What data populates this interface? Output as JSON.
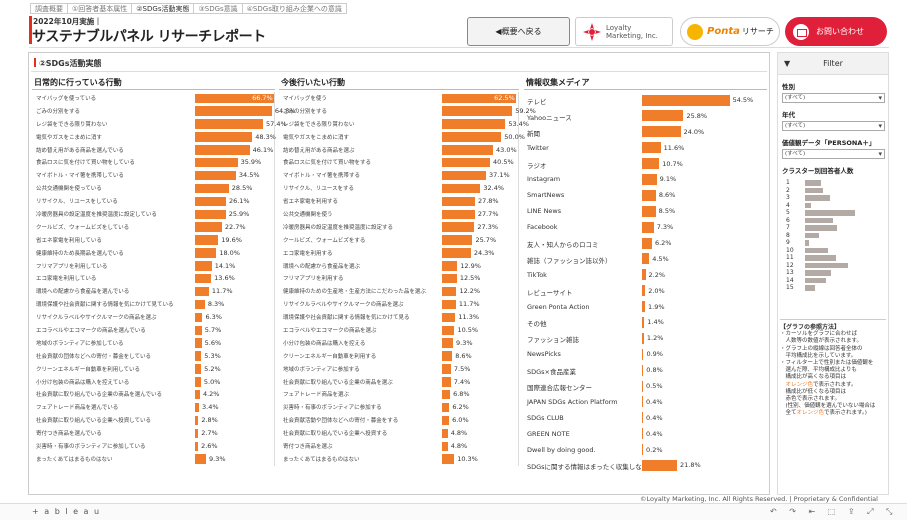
{
  "tabs": [
    "調査概要",
    "①回答者基本属性",
    "②SDGs活動実態",
    "③SDGs意識",
    "④SDGs取り組み企業への意識"
  ],
  "header": {
    "date": "2022年10月実施｜",
    "title": "サステナブルパネル リサーチレポート",
    "back_label": "◀概要へ戻る",
    "logo_lm": "Loyalty\nMarketing, Inc.",
    "logo_lm_line1": "Loyalty",
    "logo_lm_line2": "Marketing, Inc.",
    "ponta_p": "Ponta",
    "ponta_r": "リサーチ",
    "contact_label": "お問い合わせ"
  },
  "section_title": "②SDGs活動実態",
  "colors": {
    "bar": "#f07d2a",
    "accent": "#e0301e",
    "contact": "#e0203a",
    "cluster": "#b3aaa6"
  },
  "panels": [
    {
      "title": "日常的に行っている行動",
      "rows": [
        {
          "label": "マイバッグを使っている",
          "value": 66.7,
          "text": "66.7%"
        },
        {
          "label": "ごみの分別をする",
          "value": 64.8,
          "text": "64.8%"
        },
        {
          "label": "レジ袋をできる限り貰わない",
          "value": 57.4,
          "text": "57.4%"
        },
        {
          "label": "電気やガスをこまめに消す",
          "value": 48.3,
          "text": "48.3%"
        },
        {
          "label": "詰め替え用がある商品を選んでいる",
          "value": 46.1,
          "text": "46.1%"
        },
        {
          "label": "食品ロスに気を付けて買い物をしている",
          "value": 35.9,
          "text": "35.9%"
        },
        {
          "label": "マイボトル・マイ箸を携帯している",
          "value": 34.5,
          "text": "34.5%"
        },
        {
          "label": "公共交通機関を使っている",
          "value": 28.5,
          "text": "28.5%"
        },
        {
          "label": "リサイクル、リユースをしている",
          "value": 26.1,
          "text": "26.1%"
        },
        {
          "label": "冷暖房器具の設定温度を推奨温度に設定している",
          "value": 25.9,
          "text": "25.9%"
        },
        {
          "label": "クールビズ、ウォームビズをしている",
          "value": 22.7,
          "text": "22.7%"
        },
        {
          "label": "省エネ家電を利用している",
          "value": 19.6,
          "text": "19.6%"
        },
        {
          "label": "健康維持のため長期品を選んでいる",
          "value": 18.0,
          "text": "18.0%"
        },
        {
          "label": "フリマアプリを利用している",
          "value": 14.1,
          "text": "14.1%"
        },
        {
          "label": "エコ家電を利用している",
          "value": 13.6,
          "text": "13.6%"
        },
        {
          "label": "環境への配慮から食産品を選んでいる",
          "value": 11.7,
          "text": "11.7%"
        },
        {
          "label": "環境保護や社会貢献に関する情報を気にかけて見ている",
          "value": 8.3,
          "text": "8.3%"
        },
        {
          "label": "リサイクルラベルやサイクルマークの商品を選ぶ",
          "value": 6.3,
          "text": "6.3%"
        },
        {
          "label": "エコラベルやエコマークの商品を選んでいる",
          "value": 5.7,
          "text": "5.7%"
        },
        {
          "label": "地域のボランティアに参加している",
          "value": 5.6,
          "text": "5.6%"
        },
        {
          "label": "社会貢献の団体などへの寄付・募金をしている",
          "value": 5.3,
          "text": "5.3%"
        },
        {
          "label": "クリーンエネルギー自動車を利用している",
          "value": 5.2,
          "text": "5.2%"
        },
        {
          "label": "小分け包装の商品は購入を控えている",
          "value": 5.0,
          "text": "5.0%"
        },
        {
          "label": "社会貢献に取り組んでいる企業の商品を選んでいる",
          "value": 4.2,
          "text": "4.2%"
        },
        {
          "label": "フェアトレード商品を選んでいる",
          "value": 3.4,
          "text": "3.4%"
        },
        {
          "label": "社会貢献に取り組んでいる企業へ投資している",
          "value": 2.8,
          "text": "2.8%"
        },
        {
          "label": "寄付つき商品を選んでいる",
          "value": 2.7,
          "text": "2.7%"
        },
        {
          "label": "災害時・有事のボランティアに参加している",
          "value": 2.6,
          "text": "2.6%"
        },
        {
          "label": "まったくあてはまるものはない",
          "value": 9.3,
          "text": "9.3%"
        }
      ]
    },
    {
      "title": "今後行いたい行動",
      "rows": [
        {
          "label": "マイバッグを使う",
          "value": 62.5,
          "text": "62.5%"
        },
        {
          "label": "ごみの分別をする",
          "value": 59.2,
          "text": "59.2%"
        },
        {
          "label": "レジ袋をできる限り貰わない",
          "value": 53.4,
          "text": "53.4%"
        },
        {
          "label": "電気やガスをこまめに消す",
          "value": 50.0,
          "text": "50.0%"
        },
        {
          "label": "詰め替え用がある商品を選ぶ",
          "value": 43.0,
          "text": "43.0%"
        },
        {
          "label": "食品ロスに気を付けて買い物をする",
          "value": 40.5,
          "text": "40.5%"
        },
        {
          "label": "マイボトル・マイ箸を携帯する",
          "value": 37.1,
          "text": "37.1%"
        },
        {
          "label": "リサイクル、リユースをする",
          "value": 32.4,
          "text": "32.4%"
        },
        {
          "label": "省エネ家電を利用する",
          "value": 27.8,
          "text": "27.8%"
        },
        {
          "label": "公共交通機関を使う",
          "value": 27.7,
          "text": "27.7%"
        },
        {
          "label": "冷暖房器具の設定温度を推奨温度に設定する",
          "value": 27.3,
          "text": "27.3%"
        },
        {
          "label": "クールビズ、ウォームビズをする",
          "value": 25.7,
          "text": "25.7%"
        },
        {
          "label": "エコ家電を利用する",
          "value": 24.3,
          "text": "24.3%"
        },
        {
          "label": "環境への配慮から食産品を選ぶ",
          "value": 12.9,
          "text": "12.9%"
        },
        {
          "label": "フリマアプリを利用する",
          "value": 12.5,
          "text": "12.5%"
        },
        {
          "label": "健康維持のための生産地・生産方法にこだわった品を選ぶ",
          "value": 12.2,
          "text": "12.2%"
        },
        {
          "label": "リサイクルラベルやサイクルマークの商品を選ぶ",
          "value": 11.7,
          "text": "11.7%"
        },
        {
          "label": "環境保護や社会貢献に関する情報を気にかけて見る",
          "value": 11.3,
          "text": "11.3%"
        },
        {
          "label": "エコラベルやエコマークの商品を選ぶ",
          "value": 10.5,
          "text": "10.5%"
        },
        {
          "label": "小分け包装の商品は購入を控える",
          "value": 9.3,
          "text": "9.3%"
        },
        {
          "label": "クリーンエネルギー自動車を利用する",
          "value": 8.6,
          "text": "8.6%"
        },
        {
          "label": "地域のボランティアに参加する",
          "value": 7.5,
          "text": "7.5%"
        },
        {
          "label": "社会貢献に取り組んでいる企業の商品を選ぶ",
          "value": 7.4,
          "text": "7.4%"
        },
        {
          "label": "フェアトレード商品を選ぶ",
          "value": 6.8,
          "text": "6.8%"
        },
        {
          "label": "災害時・有事のボランティアに参加する",
          "value": 6.2,
          "text": "6.2%"
        },
        {
          "label": "社会貢献活動や団体などへの寄付・募金をする",
          "value": 6.0,
          "text": "6.0%"
        },
        {
          "label": "社会貢献に取り組んでいる企業へ投資する",
          "value": 4.8,
          "text": "4.8%"
        },
        {
          "label": "寄付つき商品を選ぶ",
          "value": 4.8,
          "text": "4.8%"
        },
        {
          "label": "まったくあてはまるものはない",
          "value": 10.3,
          "text": "10.3%"
        }
      ]
    }
  ],
  "media": {
    "title": "情報収集メディア",
    "rows": [
      {
        "label": "テレビ",
        "value": 54.5,
        "text": "54.5%"
      },
      {
        "label": "Yahooニュース",
        "value": 25.8,
        "text": "25.8%"
      },
      {
        "label": "新聞",
        "value": 24.0,
        "text": "24.0%"
      },
      {
        "label": "Twitter",
        "value": 11.6,
        "text": "11.6%"
      },
      {
        "label": "ラジオ",
        "value": 10.7,
        "text": "10.7%"
      },
      {
        "label": "Instagram",
        "value": 9.1,
        "text": "9.1%"
      },
      {
        "label": "SmartNews",
        "value": 8.6,
        "text": "8.6%"
      },
      {
        "label": "LINE News",
        "value": 8.5,
        "text": "8.5%"
      },
      {
        "label": "Facebook",
        "value": 7.3,
        "text": "7.3%"
      },
      {
        "label": "友人・知人からのロコミ",
        "value": 6.2,
        "text": "6.2%"
      },
      {
        "label": "雑誌（ファッション誌以外）",
        "value": 4.5,
        "text": "4.5%"
      },
      {
        "label": "TikTok",
        "value": 2.2,
        "text": "2.2%"
      },
      {
        "label": "レビューサイト",
        "value": 2.0,
        "text": "2.0%"
      },
      {
        "label": "Green Ponta Action",
        "value": 1.9,
        "text": "1.9%"
      },
      {
        "label": "その他",
        "value": 1.4,
        "text": "1.4%"
      },
      {
        "label": "ファッション雑誌",
        "value": 1.2,
        "text": "1.2%"
      },
      {
        "label": "NewsPicks",
        "value": 0.9,
        "text": "0.9%"
      },
      {
        "label": "SDGs×食品産業",
        "value": 0.8,
        "text": "0.8%"
      },
      {
        "label": "国際連合広報センター",
        "value": 0.5,
        "text": "0.5%"
      },
      {
        "label": "JAPAN SDGs Action Platform",
        "value": 0.4,
        "text": "0.4%"
      },
      {
        "label": "SDGs CLUB",
        "value": 0.4,
        "text": "0.4%"
      },
      {
        "label": "GREEN NOTE",
        "value": 0.4,
        "text": "0.4%"
      },
      {
        "label": "Dwell by doing good.",
        "value": 0.2,
        "text": "0.2%"
      },
      {
        "label": "SDGsに関する情報はまったく収集しない",
        "value": 21.8,
        "text": "21.8%"
      }
    ]
  },
  "filter": {
    "title": "Filter",
    "fields": [
      {
        "label": "性別",
        "value": "(すべて)"
      },
      {
        "label": "年代",
        "value": "(すべて)"
      },
      {
        "label": "価値観データ「PERSONA＋」",
        "value": "(すべて)"
      }
    ],
    "cluster_title": "クラスター別回答者人数",
    "clusters": [
      {
        "n": "1",
        "v": 0.32
      },
      {
        "n": "2",
        "v": 0.36
      },
      {
        "n": "3",
        "v": 0.5
      },
      {
        "n": "4",
        "v": 0.12
      },
      {
        "n": "5",
        "v": 1.0
      },
      {
        "n": "6",
        "v": 0.55
      },
      {
        "n": "7",
        "v": 0.63
      },
      {
        "n": "8",
        "v": 0.28
      },
      {
        "n": "9",
        "v": 0.07
      },
      {
        "n": "10",
        "v": 0.46
      },
      {
        "n": "11",
        "v": 0.62
      },
      {
        "n": "12",
        "v": 0.86
      },
      {
        "n": "13",
        "v": 0.52
      },
      {
        "n": "14",
        "v": 0.42
      },
      {
        "n": "15",
        "v": 0.19
      }
    ],
    "note_title": "【グラフの参照方法】",
    "note_lines": [
      "・カーソルをグラフに合わせば",
      "　人数等の数値が表示されます。",
      "・グラフ上の縦線は回答者全体の",
      "　平均構成比を示しています。",
      "・フィルター上で性別または価値観を",
      "　選んだ際、平均構成比よりも",
      "　構成比が高くなる項目は"
    ],
    "note_orange1": "　オレンジ色",
    "note_lines2": [
      "で表示されます。",
      "　構成比が低くなる項目は",
      "　赤色で表示されます。",
      "　(性別、価値観を選んでいない場合は",
      "　全て"
    ],
    "note_orange2": "オレンジ色",
    "note_end": "で表示されます。)"
  },
  "copyright": "©Loyalty Marketing, Inc. All Rights Reserved. | Proprietary & Confidential",
  "footer": {
    "brand": "+ a b l e a u",
    "icons": "↶ ↷ ⇤ ⬚ ⇪ ⤢ ⤡"
  }
}
